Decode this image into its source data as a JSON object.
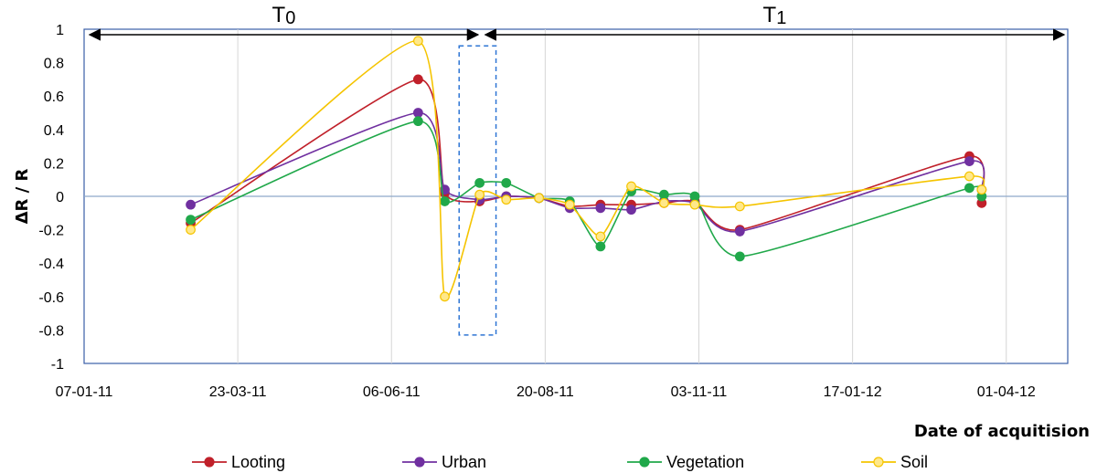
{
  "chart_data": {
    "type": "line",
    "title": "",
    "xlabel": "Date of acquitision",
    "ylabel": "ΔR / R",
    "ylim": [
      -1,
      1
    ],
    "y_ticks": [
      "1",
      "0.8",
      "0.6",
      "0.4",
      "0.2",
      "0",
      "-0.2",
      "-0.4",
      "-0.6",
      "-0.8",
      "-1"
    ],
    "y_tick_values": [
      1,
      0.8,
      0.6,
      0.4,
      0.2,
      0,
      -0.2,
      -0.4,
      -0.6,
      -0.8,
      -1
    ],
    "x_range_days": [
      0,
      480
    ],
    "x_ticks": [
      "07-01-11",
      "23-03-11",
      "06-06-11",
      "20-08-11",
      "03-11-11",
      "17-01-12",
      "01-04-12"
    ],
    "x_tick_days": [
      0,
      75,
      150,
      225,
      300,
      375,
      450
    ],
    "periods": [
      {
        "label": "T",
        "subscript": "0",
        "start_day": 0,
        "end_day": 194
      },
      {
        "label": "T",
        "subscript": "1",
        "start_day": 194,
        "end_day": 480
      }
    ],
    "highlight_box": {
      "x_start_day": 183,
      "x_end_day": 201,
      "y_min": -0.83,
      "y_max": 0.9
    },
    "series": [
      {
        "name": "Looting",
        "color": "#c0202a",
        "fill": "#c0202a",
        "x": [
          52,
          163,
          176,
          193,
          206,
          222,
          237,
          252,
          267,
          283,
          298,
          320,
          432,
          438
        ],
        "y": [
          -0.16,
          0.7,
          0.02,
          -0.03,
          0.0,
          -0.01,
          -0.06,
          -0.05,
          -0.05,
          -0.04,
          -0.03,
          -0.2,
          0.24,
          -0.04
        ]
      },
      {
        "name": "Urban",
        "color": "#7030a0",
        "fill": "#7030a0",
        "x": [
          52,
          163,
          176,
          193,
          206,
          222,
          237,
          252,
          267,
          283,
          298,
          320,
          432,
          438
        ],
        "y": [
          -0.05,
          0.5,
          0.04,
          -0.02,
          0.0,
          -0.01,
          -0.07,
          -0.07,
          -0.08,
          -0.03,
          -0.04,
          -0.21,
          0.21,
          0.04
        ]
      },
      {
        "name": "Vegetation",
        "color": "#20a84a",
        "fill": "#20a84a",
        "x": [
          52,
          163,
          176,
          193,
          206,
          222,
          237,
          252,
          267,
          283,
          298,
          320,
          432,
          438
        ],
        "y": [
          -0.14,
          0.45,
          -0.03,
          0.08,
          0.08,
          -0.01,
          -0.03,
          -0.3,
          0.03,
          0.01,
          0.0,
          -0.36,
          0.05,
          0.0
        ]
      },
      {
        "name": "Soil",
        "color": "#f5c400",
        "fill": "#ffe88a",
        "x": [
          52,
          163,
          176,
          193,
          206,
          222,
          237,
          252,
          267,
          283,
          298,
          320,
          432,
          438
        ],
        "y": [
          -0.2,
          0.93,
          -0.6,
          0.01,
          -0.02,
          -0.01,
          -0.05,
          -0.24,
          0.06,
          -0.04,
          -0.05,
          -0.06,
          0.12,
          0.04
        ]
      }
    ]
  }
}
